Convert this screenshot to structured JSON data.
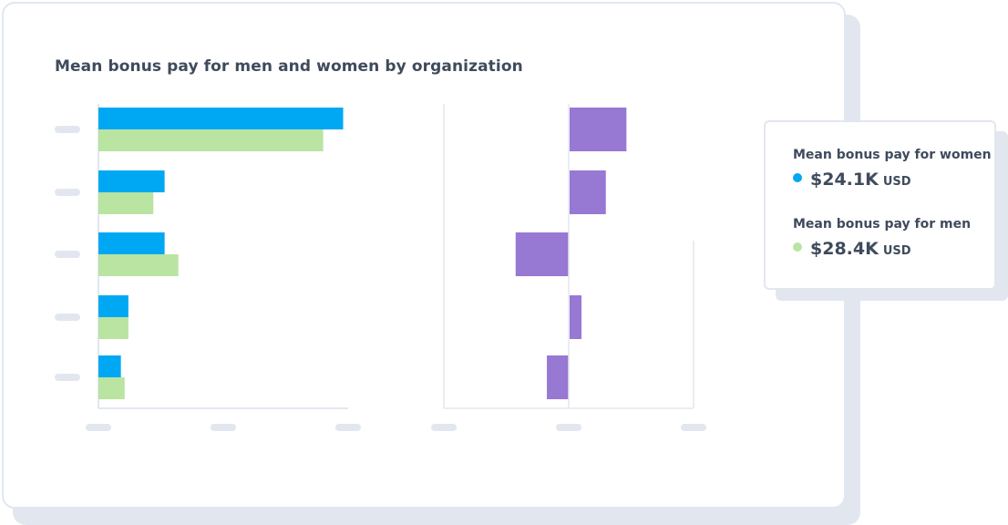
{
  "page": {
    "title": "Mean bonus pay for men and women by organization"
  },
  "legend": {
    "items": [
      {
        "label": "Mean bonus pay for women",
        "value": "$24.1K",
        "unit": "USD",
        "color": "#00a8f3"
      },
      {
        "label": "Mean bonus pay for men",
        "value": "$28.4K",
        "unit": "USD",
        "color": "#b9e4a1"
      }
    ]
  },
  "chart_data": [
    {
      "type": "bar",
      "orientation": "horizontal",
      "title": "Mean bonus pay for men and women by organization",
      "category_count": 5,
      "xlim": [
        0,
        100
      ],
      "series": [
        {
          "name": "Mean bonus pay for women",
          "color": "#00a8f3",
          "values": [
            98,
            26.5,
            26.5,
            12,
            9
          ]
        },
        {
          "name": "Mean bonus pay for men",
          "color": "#b9e4a1",
          "values": [
            90,
            22,
            32,
            12,
            10.5
          ]
        }
      ],
      "tick_labels_visible": false,
      "x_tick_count": 3
    },
    {
      "type": "bar",
      "orientation": "horizontal",
      "category_count": 5,
      "xlim": [
        -100,
        100
      ],
      "series": [
        {
          "color": "#9778d3",
          "values": [
            45.5,
            29,
            -42.5,
            9.5,
            -17.5
          ]
        }
      ],
      "tick_labels_visible": false,
      "x_tick_count": 3
    }
  ]
}
